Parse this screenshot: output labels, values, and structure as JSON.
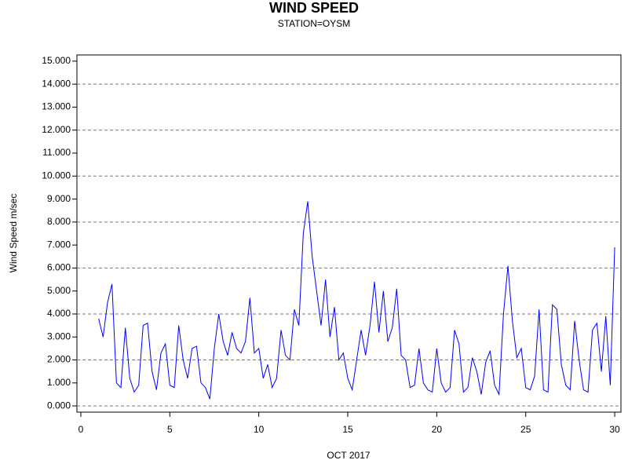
{
  "chart_data": {
    "type": "line",
    "title": "WIND SPEED",
    "subtitle": "STATION=OYSM",
    "x_label": "OCT 2017",
    "y_label": "Wind Speed m/sec",
    "xlim": [
      -0.22,
      30.35
    ],
    "xticks": [
      0,
      5,
      10,
      15,
      20,
      25,
      30
    ],
    "ylim": [
      -0.27,
      15.27
    ],
    "yticks": [
      {
        "value": 0,
        "label": "0.000"
      },
      {
        "value": 1,
        "label": "1.000"
      },
      {
        "value": 2,
        "label": "2.000"
      },
      {
        "value": 3,
        "label": "3.000"
      },
      {
        "value": 4,
        "label": "4.000"
      },
      {
        "value": 5,
        "label": "5.000"
      },
      {
        "value": 6,
        "label": "6.000"
      },
      {
        "value": 7,
        "label": "7.000"
      },
      {
        "value": 8,
        "label": "8.000"
      },
      {
        "value": 9,
        "label": "9.000"
      },
      {
        "value": 10,
        "label": "10.000"
      },
      {
        "value": 11,
        "label": "11.000"
      },
      {
        "value": 12,
        "label": "12.000"
      },
      {
        "value": 13,
        "label": "13.000"
      },
      {
        "value": 14,
        "label": "14.000"
      },
      {
        "value": 15,
        "label": "15.000"
      }
    ],
    "grid": true,
    "grid_step": 2,
    "color": "#0000ff",
    "x": [
      1,
      1.25,
      1.5,
      1.75,
      2,
      2.25,
      2.5,
      2.75,
      3,
      3.25,
      3.5,
      3.75,
      4,
      4.25,
      4.5,
      4.75,
      5,
      5.25,
      5.5,
      5.75,
      6,
      6.25,
      6.5,
      6.75,
      7,
      7.25,
      7.5,
      7.75,
      8,
      8.25,
      8.5,
      8.75,
      9,
      9.25,
      9.5,
      9.75,
      10,
      10.25,
      10.5,
      10.75,
      11,
      11.25,
      11.5,
      11.75,
      12,
      12.25,
      12.5,
      12.75,
      13,
      13.25,
      13.5,
      13.75,
      14,
      14.25,
      14.5,
      14.75,
      15,
      15.25,
      15.5,
      15.75,
      16,
      16.25,
      16.5,
      16.75,
      17,
      17.25,
      17.5,
      17.75,
      18,
      18.25,
      18.5,
      18.75,
      19,
      19.25,
      19.5,
      19.75,
      20,
      20.25,
      20.5,
      20.75,
      21,
      21.25,
      21.5,
      21.75,
      22,
      22.25,
      22.5,
      22.75,
      23,
      23.25,
      23.5,
      23.75,
      24,
      24.25,
      24.5,
      24.75,
      25,
      25.25,
      25.5,
      25.75,
      26,
      26.25,
      26.5,
      26.75,
      27,
      27.25,
      27.5,
      27.75,
      28,
      28.25,
      28.5,
      28.75,
      29,
      29.25,
      29.5,
      29.75,
      30
    ],
    "values": [
      3.8,
      3.0,
      4.5,
      5.3,
      1.0,
      0.8,
      3.4,
      1.2,
      0.6,
      0.9,
      3.5,
      3.6,
      1.5,
      0.7,
      2.3,
      2.7,
      0.9,
      0.8,
      3.5,
      2.0,
      1.2,
      2.5,
      2.6,
      1.0,
      0.8,
      0.3,
      2.5,
      4.0,
      2.8,
      2.2,
      3.2,
      2.5,
      2.3,
      2.8,
      4.7,
      2.3,
      2.5,
      1.2,
      1.8,
      0.8,
      1.2,
      3.3,
      2.2,
      2.0,
      4.2,
      3.5,
      7.5,
      8.9,
      6.5,
      5.0,
      3.5,
      5.5,
      3.0,
      4.3,
      2.0,
      2.3,
      1.2,
      0.7,
      2.0,
      3.3,
      2.2,
      3.5,
      5.4,
      3.2,
      5.0,
      2.8,
      3.4,
      5.1,
      2.2,
      2.0,
      0.8,
      0.9,
      2.5,
      1.0,
      0.7,
      0.6,
      2.5,
      1.0,
      0.6,
      0.8,
      3.3,
      2.7,
      0.6,
      0.8,
      2.1,
      1.5,
      0.5,
      1.9,
      2.4,
      0.9,
      0.5,
      4.0,
      6.1,
      3.7,
      2.1,
      2.5,
      0.8,
      0.7,
      1.3,
      4.2,
      0.7,
      0.6,
      4.4,
      4.2,
      1.8,
      0.9,
      0.7,
      3.7,
      2.0,
      0.7,
      0.6,
      3.3,
      3.6,
      1.5,
      3.9,
      0.9,
      6.9
    ]
  }
}
